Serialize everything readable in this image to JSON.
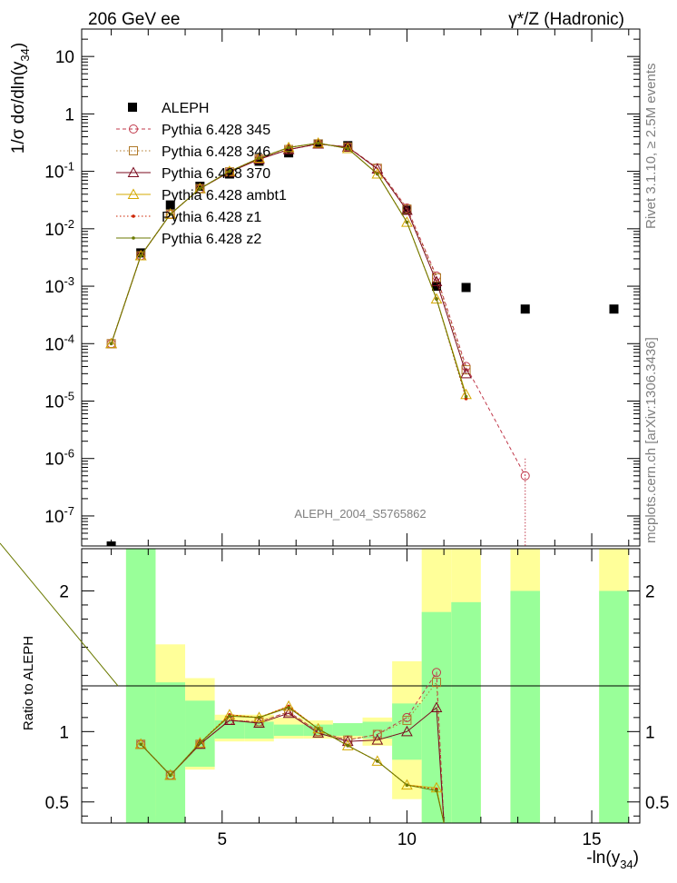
{
  "header": {
    "left": "206 GeV ee",
    "right": "γ*/Z (Hadronic)"
  },
  "side_text": {
    "top": "Rivet 3.1.10, ≥ 2.5M events",
    "bottom": "mcplots.cern.ch [arXiv:1306.3436]"
  },
  "watermark": "ALEPH_2004_S5765862",
  "colors": {
    "aleph": "#000000",
    "p345": "#c0394b",
    "p346": "#b07a2a",
    "p370": "#7a0a1e",
    "ambt1": "#d4a800",
    "z1": "#cc2200",
    "z2": "#6b7a00",
    "band_green": "#99ff99",
    "band_yellow": "#ffff99"
  },
  "chart_data": [
    {
      "type": "line",
      "panel": "main",
      "ylabel": "1/σ dσ/dln(y34)",
      "yscale": "log",
      "ylim": [
        3e-08,
        30
      ],
      "xlim": [
        1.2,
        16.3
      ],
      "ytick_labels": [
        "10",
        "1",
        "10-1",
        "10-2",
        "10-3",
        "10-4",
        "10-5",
        "10-6",
        "10-7"
      ],
      "legend_position": "top-left",
      "series": [
        {
          "name": "ALEPH",
          "style": "data",
          "x": [
            2.0,
            2.8,
            3.6,
            4.4,
            5.2,
            6.0,
            6.8,
            7.6,
            8.4,
            10.0,
            10.8,
            11.6,
            13.2,
            15.6
          ],
          "y": [
            3e-08,
            0.0038,
            0.026,
            0.055,
            0.09,
            0.15,
            0.21,
            0.3,
            0.28,
            0.021,
            0.001,
            0.00095,
            0.0004,
            0.0004
          ]
        },
        {
          "name": "Pythia 6.428 345",
          "style": "dashed",
          "marker": "circle",
          "x": [
            2.0,
            2.8,
            3.6,
            4.4,
            5.2,
            6.0,
            6.8,
            7.6,
            8.4,
            9.2,
            10.0,
            10.8,
            11.6,
            13.2
          ],
          "y": [
            0.0001,
            0.0034,
            0.018,
            0.05,
            0.098,
            0.165,
            0.24,
            0.3,
            0.265,
            0.115,
            0.023,
            0.0015,
            4e-05,
            5e-07
          ]
        },
        {
          "name": "Pythia 6.428 346",
          "style": "dotted",
          "marker": "square",
          "x": [
            2.0,
            2.8,
            3.6,
            4.4,
            5.2,
            6.0,
            6.8,
            7.6,
            8.4,
            9.2,
            10.0,
            10.8,
            11.6
          ],
          "y": [
            0.0001,
            0.0034,
            0.018,
            0.05,
            0.098,
            0.165,
            0.24,
            0.3,
            0.265,
            0.113,
            0.022,
            0.0014,
            3.5e-05
          ]
        },
        {
          "name": "Pythia 6.428 370",
          "style": "solid",
          "marker": "triangle",
          "x": [
            2.0,
            2.8,
            3.6,
            4.4,
            5.2,
            6.0,
            6.8,
            7.6,
            8.4,
            9.2,
            10.0,
            10.8,
            11.6
          ],
          "y": [
            0.0001,
            0.0034,
            0.018,
            0.05,
            0.097,
            0.162,
            0.24,
            0.3,
            0.265,
            0.11,
            0.021,
            0.0012,
            3e-05
          ]
        },
        {
          "name": "Pythia 6.428 ambt1",
          "style": "solid",
          "marker": "triangle",
          "x": [
            2.0,
            2.8,
            3.6,
            4.4,
            5.2,
            6.0,
            6.8,
            7.6,
            8.4,
            9.2,
            10.0,
            10.8,
            11.6
          ],
          "y": [
            0.0001,
            0.0034,
            0.018,
            0.05,
            0.1,
            0.17,
            0.26,
            0.31,
            0.25,
            0.09,
            0.013,
            0.0006,
            1.3e-05
          ]
        },
        {
          "name": "Pythia 6.428 z1",
          "style": "dotted",
          "marker": "dot",
          "x": [
            2.0,
            2.8,
            3.6,
            4.4,
            5.2,
            6.0,
            6.8,
            7.6,
            8.4,
            9.2,
            10.0,
            10.8,
            11.6
          ],
          "y": [
            0.0001,
            0.0034,
            0.018,
            0.05,
            0.1,
            0.17,
            0.26,
            0.31,
            0.25,
            0.09,
            0.013,
            0.0006,
            1.1e-05
          ]
        },
        {
          "name": "Pythia 6.428 z2",
          "style": "solid",
          "marker": "dot",
          "x": [
            2.0,
            2.8,
            3.6,
            4.4,
            5.2,
            6.0,
            6.8,
            7.6,
            8.4,
            9.2,
            10.0,
            10.8,
            11.6
          ],
          "y": [
            0.0001,
            0.0034,
            0.018,
            0.05,
            0.1,
            0.17,
            0.26,
            0.31,
            0.25,
            0.09,
            0.013,
            0.0006,
            1.2e-05
          ]
        }
      ]
    },
    {
      "type": "line",
      "panel": "ratio",
      "ylabel": "Ratio to ALEPH",
      "xlabel": "-ln(y34)",
      "ylim": [
        0.35,
        2.3
      ],
      "xlim": [
        1.2,
        16.3
      ],
      "xtick_labels": [
        "5",
        "10",
        "15"
      ],
      "ytick_labels": [
        "2",
        "1",
        "0.5"
      ],
      "bands": [
        {
          "x0": 2.4,
          "x1": 3.2,
          "green": [
            0.35,
            2.3
          ],
          "yellow": [
            0.35,
            2.3
          ]
        },
        {
          "x0": 3.2,
          "x1": 4.0,
          "green": [
            0.35,
            1.35
          ],
          "yellow": [
            0.4,
            1.62
          ]
        },
        {
          "x0": 4.0,
          "x1": 4.8,
          "green": [
            0.75,
            1.22
          ],
          "yellow": [
            0.73,
            1.38
          ]
        },
        {
          "x0": 4.8,
          "x1": 5.6,
          "green": [
            0.95,
            1.08
          ],
          "yellow": [
            0.93,
            1.12
          ]
        },
        {
          "x0": 5.6,
          "x1": 6.4,
          "green": [
            0.95,
            1.07
          ],
          "yellow": [
            0.93,
            1.12
          ]
        },
        {
          "x0": 6.4,
          "x1": 7.2,
          "green": [
            0.97,
            1.05
          ],
          "yellow": [
            0.95,
            1.1
          ]
        },
        {
          "x0": 7.2,
          "x1": 8.0,
          "green": [
            0.97,
            1.05
          ],
          "yellow": [
            0.95,
            1.08
          ]
        },
        {
          "x0": 8.0,
          "x1": 8.8,
          "green": [
            0.97,
            1.06
          ],
          "yellow": [
            0.95,
            1.06
          ]
        },
        {
          "x0": 8.8,
          "x1": 9.6,
          "green": [
            0.95,
            1.07
          ],
          "yellow": [
            0.9,
            1.1
          ]
        },
        {
          "x0": 9.6,
          "x1": 10.4,
          "green": [
            0.8,
            1.2
          ],
          "yellow": [
            0.52,
            1.5
          ]
        },
        {
          "x0": 10.4,
          "x1": 11.2,
          "green": [
            0.35,
            1.85
          ],
          "yellow": [
            0.35,
            2.3
          ]
        },
        {
          "x0": 11.2,
          "x1": 12.0,
          "green": [
            0.35,
            1.92
          ],
          "yellow": [
            0.35,
            2.3
          ]
        },
        {
          "x0": 12.8,
          "x1": 13.6,
          "green": [
            0.35,
            2.0
          ],
          "yellow": [
            0.35,
            2.3
          ]
        },
        {
          "x0": 15.2,
          "x1": 16.0,
          "green": [
            0.35,
            2.0
          ],
          "yellow": [
            0.35,
            2.3
          ]
        }
      ],
      "series": [
        {
          "name": "Pythia 6.428 345",
          "x": [
            2.8,
            3.6,
            4.4,
            5.2,
            6.0,
            6.8,
            7.6,
            8.4,
            9.2,
            10.0,
            10.8,
            11.0
          ],
          "y": [
            0.91,
            0.69,
            0.91,
            1.08,
            1.07,
            1.14,
            1.0,
            0.94,
            0.98,
            1.1,
            1.42,
            0.35
          ]
        },
        {
          "name": "Pythia 6.428 346",
          "x": [
            2.8,
            3.6,
            4.4,
            5.2,
            6.0,
            6.8,
            7.6,
            8.4,
            9.2,
            10.0,
            10.8,
            11.0
          ],
          "y": [
            0.91,
            0.69,
            0.91,
            1.08,
            1.07,
            1.14,
            1.0,
            0.94,
            0.98,
            1.08,
            1.35,
            0.35
          ]
        },
        {
          "name": "Pythia 6.428 370",
          "x": [
            2.8,
            3.6,
            4.4,
            5.2,
            6.0,
            6.8,
            7.6,
            8.4,
            9.2,
            10.0,
            10.8,
            11.0
          ],
          "y": [
            0.91,
            0.69,
            0.91,
            1.08,
            1.06,
            1.13,
            0.99,
            0.93,
            0.94,
            1.0,
            1.17,
            0.35
          ]
        },
        {
          "name": "Pythia 6.428 ambt1",
          "x": [
            2.8,
            3.6,
            4.4,
            5.2,
            6.0,
            6.8,
            7.6,
            8.4,
            9.2,
            10.0,
            10.8,
            11.0
          ],
          "y": [
            0.91,
            0.69,
            0.92,
            1.12,
            1.1,
            1.18,
            1.02,
            0.9,
            0.79,
            0.62,
            0.6,
            0.35
          ]
        },
        {
          "name": "Pythia 6.428 z1",
          "x": [
            2.8,
            3.6,
            4.4,
            5.2,
            6.0,
            6.8,
            7.6,
            8.4,
            9.2,
            10.0,
            10.8,
            11.0
          ],
          "y": [
            0.91,
            0.69,
            0.92,
            1.12,
            1.1,
            1.18,
            1.02,
            0.9,
            0.79,
            0.62,
            0.59,
            0.35
          ]
        },
        {
          "name": "Pythia 6.428 z2",
          "x": [
            2.8,
            3.6,
            4.4,
            5.2,
            6.0,
            6.8,
            7.6,
            8.4,
            9.2,
            10.0,
            10.8,
            11.0
          ],
          "y": [
            0.91,
            0.69,
            0.92,
            1.11,
            1.1,
            1.17,
            1.02,
            0.9,
            0.79,
            0.62,
            0.58,
            0.35
          ]
        }
      ]
    }
  ]
}
